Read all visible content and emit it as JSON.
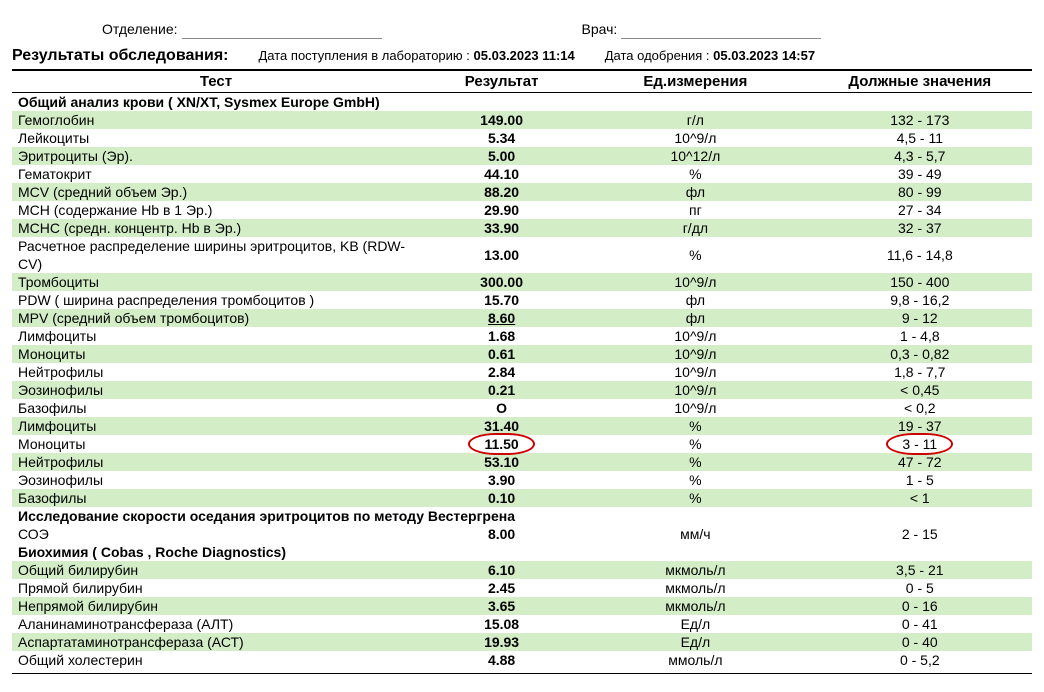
{
  "header": {
    "dept_label": "Отделение:",
    "dept_value": "",
    "doctor_label": "Врач:",
    "doctor_value": ""
  },
  "results_bar": {
    "title": "Результаты обследования:",
    "received_label": "Дата поступления в лабораторию :",
    "received_value": "05.03.2023 11:14",
    "approved_label": "Дата одобрения :",
    "approved_value": "05.03.2023 14:57"
  },
  "columns": {
    "test": "Тест",
    "result": "Результат",
    "unit": "Ед.измерения",
    "ref": "Должные значения"
  },
  "sections": [
    {
      "title": "Общий анализ крови ( XN/XT, Sysmex Europe GmbH)",
      "rows": [
        {
          "test": "Гемоглобин",
          "result": "149.00",
          "unit": "г/л",
          "ref": "132 - 173",
          "stripe": true
        },
        {
          "test": "Лейкоциты",
          "result": "5.34",
          "unit": "10^9/л",
          "ref": "4,5 - 11"
        },
        {
          "test": "Эритроциты (Эр).",
          "result": "5.00",
          "unit": "10^12/л",
          "ref": "4,3 - 5,7",
          "stripe": true
        },
        {
          "test": "Гематокрит",
          "result": "44.10",
          "unit": "%",
          "ref": "39 - 49"
        },
        {
          "test": "MCV (средний объем Эр.)",
          "result": "88.20",
          "unit": "фл",
          "ref": "80 - 99",
          "stripe": true
        },
        {
          "test": "MCH (содержание Hb в 1 Эр.)",
          "result": "29.90",
          "unit": "пг",
          "ref": "27 - 34"
        },
        {
          "test": "MCHC (средн. концентр. Hb в Эр.)",
          "result": "33.90",
          "unit": "г/дл",
          "ref": "32 - 37",
          "stripe": true
        },
        {
          "test": "Расчетное распределение ширины эритроцитов, KB (RDW-CV)",
          "result": "13.00",
          "unit": "%",
          "ref": "11,6 - 14,8"
        },
        {
          "test": "Тромбоциты",
          "result": "300.00",
          "unit": "10^9/л",
          "ref": "150 - 400",
          "stripe": true
        },
        {
          "test": "PDW ( ширина распределения тромбоцитов )",
          "result": "15.70",
          "unit": "фл",
          "ref": "9,8 - 16,2"
        },
        {
          "test": "MPV (средний объем тромбоцитов)",
          "result": "8.60",
          "unit": "фл",
          "ref": "9 - 12",
          "stripe": true,
          "underline": true
        },
        {
          "test": "Лимфоциты",
          "result": "1.68",
          "unit": "10^9/л",
          "ref": "1 - 4,8"
        },
        {
          "test": "Моноциты",
          "result": "0.61",
          "unit": "10^9/л",
          "ref": "0,3 - 0,82",
          "stripe": true
        },
        {
          "test": "Нейтрофилы",
          "result": "2.84",
          "unit": "10^9/л",
          "ref": "1,8 - 7,7"
        },
        {
          "test": "Эозинофилы",
          "result": "0.21",
          "unit": "10^9/л",
          "ref": "< 0,45",
          "stripe": true
        },
        {
          "test": "Базофилы",
          "result": "O",
          "unit": "10^9/л",
          "ref": "< 0,2"
        },
        {
          "test": "Лимфоциты",
          "result": "31.40",
          "unit": "%",
          "ref": "19 - 37",
          "stripe": true
        },
        {
          "test": "Моноциты",
          "result": "11.50",
          "unit": "%",
          "ref": "3 - 11",
          "circled": true
        },
        {
          "test": "Нейтрофилы",
          "result": "53.10",
          "unit": "%",
          "ref": "47 - 72",
          "stripe": true
        },
        {
          "test": "Эозинофилы",
          "result": "3.90",
          "unit": "%",
          "ref": "1 - 5"
        },
        {
          "test": "Базофилы",
          "result": "0.10",
          "unit": "%",
          "ref": "< 1",
          "stripe": true
        }
      ]
    },
    {
      "title": "Исследование скорости оседания эритроцитов по методу Вестергрена",
      "rows": [
        {
          "test": "СОЭ",
          "result": "8.00",
          "unit": "мм/ч",
          "ref": "2 - 15"
        }
      ]
    },
    {
      "title": "Биохимия ( Cobas , Roche Diagnostics)",
      "rows": [
        {
          "test": "Общий билирубин",
          "result": "6.10",
          "unit": "мкмоль/л",
          "ref": "3,5 - 21",
          "stripe": true
        },
        {
          "test": "Прямой билирубин",
          "result": "2.45",
          "unit": "мкмоль/л",
          "ref": "0 - 5"
        },
        {
          "test": "Непрямой билирубин",
          "result": "3.65",
          "unit": "мкмоль/л",
          "ref": "0 - 16",
          "stripe": true
        },
        {
          "test": "Аланинаминотрансфераза (АЛТ)",
          "result": "15.08",
          "unit": "Ед/л",
          "ref": "0 - 41"
        },
        {
          "test": "Аспартатаминотрансфераза (АСТ)",
          "result": "19.93",
          "unit": "Ед/л",
          "ref": "0 - 40",
          "stripe": true
        },
        {
          "test": "Общий холестерин",
          "result": "4.88",
          "unit": "ммоль/л",
          "ref": "0 - 5,2"
        }
      ]
    }
  ],
  "colors": {
    "stripe": "#d3eec6",
    "circle": "#c00"
  }
}
